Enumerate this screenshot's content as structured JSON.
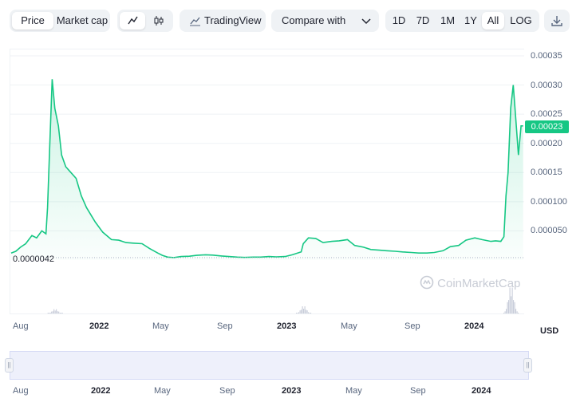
{
  "toolbar": {
    "view_tabs": [
      "Price",
      "Market cap"
    ],
    "tradingview_label": "TradingView",
    "compare_label": "Compare with",
    "ranges": [
      "1D",
      "7D",
      "1M",
      "1Y",
      "All",
      "LOG"
    ],
    "active_range": "All",
    "active_view": "Price",
    "icons": [
      "line-chart-icon",
      "candlestick-icon",
      "tradingview-icon",
      "chevron-down-icon",
      "download-icon"
    ]
  },
  "chart": {
    "current_price_label": "0.00023",
    "min_label": "0.0000042",
    "currency": "USD",
    "watermark": "CoinMarketCap",
    "color_line": "#16c784",
    "color_volume": "#c3c8d6"
  },
  "chart_data": {
    "type": "area",
    "y_ticks": [
      "0.00035",
      "0.00030",
      "0.00025",
      "0.00020",
      "0.00015",
      "0.000100",
      "0.000050"
    ],
    "x_ticks": [
      "Aug",
      "2022",
      "May",
      "Sep",
      "2023",
      "May",
      "Sep",
      "2024"
    ],
    "bold_x_ticks": [
      "2022",
      "2023",
      "2024"
    ],
    "ylim": [
      0,
      0.00035
    ],
    "x_range": [
      "2021-07-20",
      "2024-04-05"
    ],
    "series": [
      {
        "x": [
          "2021-07-23",
          "2021-08-01",
          "2021-08-10",
          "2021-08-20",
          "2021-09-01",
          "2021-09-10",
          "2021-09-20",
          "2021-09-28",
          "2021-10-01",
          "2021-10-05",
          "2021-10-10",
          "2021-10-15",
          "2021-10-22",
          "2021-10-28",
          "2021-11-05",
          "2021-11-15",
          "2021-11-25",
          "2021-12-05",
          "2021-12-15",
          "2022-01-01",
          "2022-01-15",
          "2022-02-01",
          "2022-02-15",
          "2022-03-01",
          "2022-03-15",
          "2022-04-01",
          "2022-04-15",
          "2022-05-01",
          "2022-05-10",
          "2022-05-20",
          "2022-06-01",
          "2022-06-15",
          "2022-07-01",
          "2022-07-15",
          "2022-08-01",
          "2022-08-15",
          "2022-09-01",
          "2022-09-15",
          "2022-10-01",
          "2022-10-15",
          "2022-11-01",
          "2022-11-15",
          "2022-12-01",
          "2022-12-15",
          "2023-01-01",
          "2023-01-15",
          "2023-02-01",
          "2023-02-05",
          "2023-02-15",
          "2023-03-01",
          "2023-03-15",
          "2023-04-01",
          "2023-04-15",
          "2023-05-01",
          "2023-05-15",
          "2023-06-01",
          "2023-06-15",
          "2023-07-01",
          "2023-07-15",
          "2023-08-01",
          "2023-08-15",
          "2023-09-01",
          "2023-09-15",
          "2023-10-01",
          "2023-10-15",
          "2023-11-01",
          "2023-11-15",
          "2023-12-01",
          "2023-12-15",
          "2024-01-01",
          "2024-01-15",
          "2024-02-01",
          "2024-02-10",
          "2024-02-20",
          "2024-02-26",
          "2024-03-01",
          "2024-03-05",
          "2024-03-10",
          "2024-03-15",
          "2024-03-20",
          "2024-03-25",
          "2024-03-30",
          "2024-04-03"
        ],
        "values": [
          1.2e-05,
          1.5e-05,
          2.2e-05,
          2.8e-05,
          4.2e-05,
          3.8e-05,
          5e-05,
          4.5e-05,
          9e-05,
          0.00019,
          0.00031,
          0.00026,
          0.00023,
          0.00018,
          0.00016,
          0.00015,
          0.00014,
          0.00011,
          9e-05,
          6.5e-05,
          4.8e-05,
          3.5e-05,
          3.4e-05,
          3e-05,
          2.9e-05,
          2.8e-05,
          2e-05,
          1.2e-05,
          8e-06,
          5e-06,
          4.2e-06,
          6e-06,
          6.5e-06,
          8e-06,
          9e-06,
          8.5e-06,
          7e-06,
          6e-06,
          5e-06,
          4.5e-06,
          5e-06,
          5e-06,
          6e-06,
          5.5e-06,
          6e-06,
          9e-06,
          1.4e-05,
          2.8e-05,
          3.8e-05,
          3.7e-05,
          3e-05,
          3.2e-05,
          3.3e-05,
          3.5e-05,
          2.5e-05,
          2.2e-05,
          1.8e-05,
          1.7e-05,
          1.6e-05,
          1.5e-05,
          1.4e-05,
          1.3e-05,
          1.2e-05,
          1.2e-05,
          1.3e-05,
          1.6e-05,
          2.3e-05,
          2.5e-05,
          3.4e-05,
          3.8e-05,
          3.5e-05,
          3.2e-05,
          3.3e-05,
          3.2e-05,
          4e-05,
          0.00011,
          0.00015,
          0.00026,
          0.0003,
          0.00024,
          0.00018,
          0.00023,
          0.00023
        ]
      }
    ],
    "volume_spikes": [
      {
        "date": "2021-10-15",
        "relative": 0.15
      },
      {
        "date": "2023-02-05",
        "relative": 0.25
      },
      {
        "date": "2024-03-10",
        "relative": 0.9
      }
    ],
    "legend": "none",
    "grid": true
  },
  "navigator": {
    "x_ticks": [
      "Aug",
      "2022",
      "May",
      "Sep",
      "2023",
      "May",
      "Sep",
      "2024"
    ],
    "bold_x_ticks": [
      "2022",
      "2023",
      "2024"
    ]
  }
}
